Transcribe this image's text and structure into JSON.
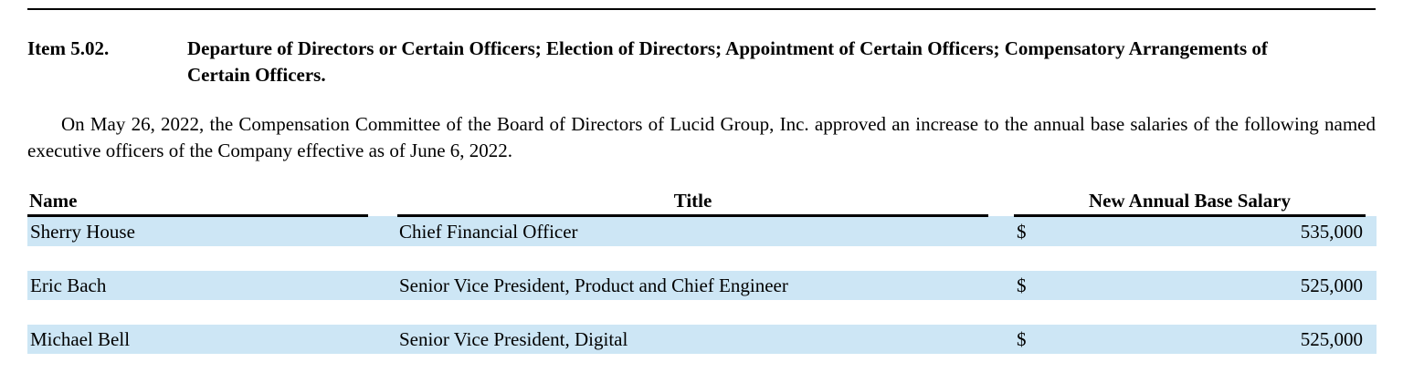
{
  "document": {
    "item_label": "Item 5.02.",
    "item_title": "Departure of Directors or Certain Officers; Election of Directors; Appointment of Certain Officers; Compensatory Arrangements of Certain Officers.",
    "paragraph": "On May 26, 2022, the Compensation Committee of the Board of Directors of Lucid Group, Inc. approved an increase to the annual base salaries of the following named executive officers of the Company effective as of June 6, 2022.",
    "table": {
      "columns": [
        "Name",
        "Title",
        "New Annual Base Salary"
      ],
      "currency_symbol": "$",
      "rows": [
        {
          "name": "Sherry House",
          "title": "Chief Financial Officer",
          "salary": "535,000"
        },
        {
          "name": "Eric Bach",
          "title": "Senior Vice President, Product and Chief Engineer",
          "salary": "525,000"
        },
        {
          "name": "Michael Bell",
          "title": "Senior Vice President, Digital",
          "salary": "525,000"
        }
      ]
    },
    "colors": {
      "row_highlight": "#cde6f5",
      "text": "#000000",
      "rule": "#000000"
    }
  }
}
